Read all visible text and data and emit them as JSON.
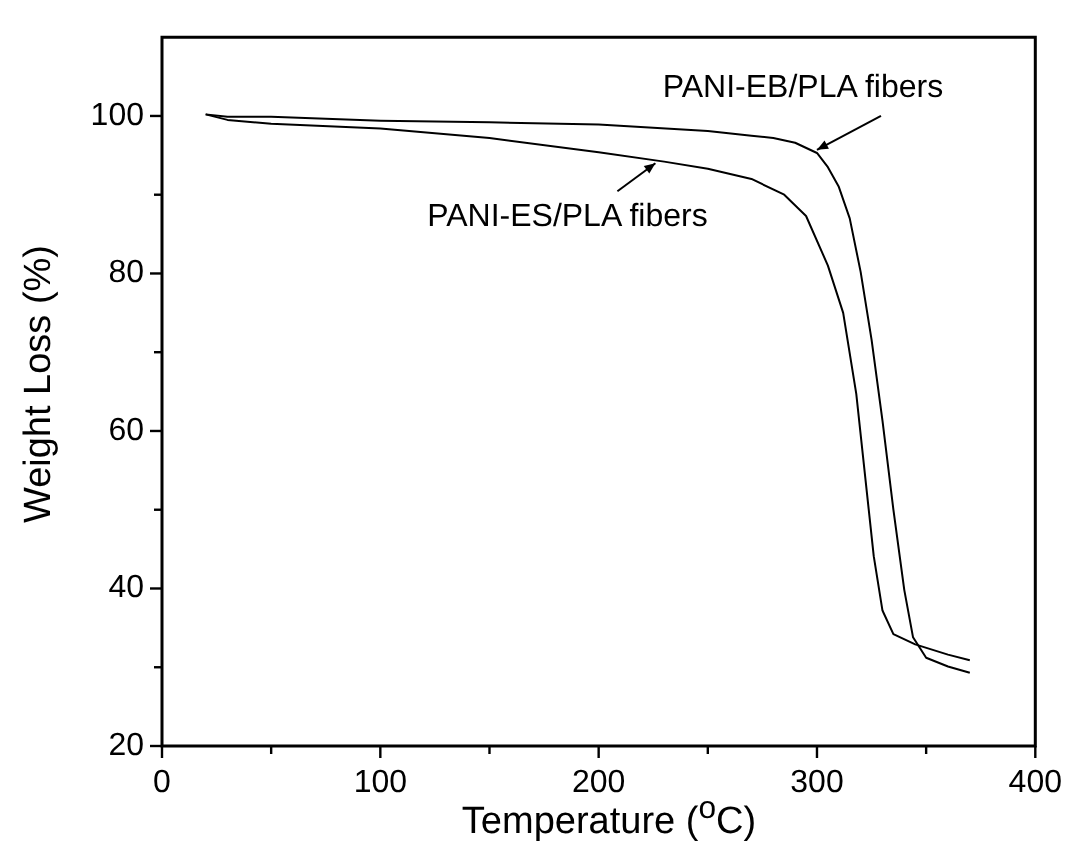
{
  "chart_data": {
    "type": "line",
    "xlabel": "Temperature ($^{o}$C)",
    "ylabel": "Weight Loss (%)",
    "xlim": [
      0,
      400
    ],
    "xticks": [
      0,
      {
        "value": 50,
        "label": null
      },
      100,
      {
        "value": 150,
        "label": null
      },
      200,
      {
        "value": 250,
        "label": null
      },
      300,
      {
        "value": 350,
        "label": null
      },
      400
    ],
    "ylim": [
      20,
      110
    ],
    "yticks": [
      20,
      {
        "value": 30,
        "label": null
      },
      40,
      {
        "value": 50,
        "label": null
      },
      60,
      {
        "value": 70,
        "label": null
      },
      80,
      {
        "value": 90,
        "label": null
      },
      100
    ],
    "grid": false,
    "legend": false,
    "marker": "none",
    "line_style": "solid",
    "series": [
      {
        "color": "#000000",
        "x": [
          20,
          30,
          50,
          100,
          150,
          200,
          250,
          270,
          280,
          290,
          300,
          305,
          310,
          315,
          320,
          325,
          330,
          335,
          340,
          344,
          350,
          360,
          370
        ],
        "values": [
          100.2,
          99.9,
          99.9,
          99.4,
          99.2,
          98.9,
          98.1,
          97.5,
          97.2,
          96.6,
          95.3,
          93.5,
          91,
          87,
          80.2,
          71.6,
          61.3,
          50,
          39.8,
          33.8,
          31.2,
          30.1,
          29.3
        ]
      },
      {
        "color": "#000000",
        "x": [
          20,
          30,
          50,
          100,
          150,
          200,
          230,
          250,
          270,
          285,
          295,
          305,
          312,
          318,
          322,
          326,
          330,
          335,
          345,
          360,
          370
        ],
        "values": [
          100.2,
          99.5,
          99,
          98.4,
          97.2,
          95.4,
          94.2,
          93.3,
          92,
          90,
          87.3,
          81,
          75,
          64.7,
          54.4,
          44.1,
          37.2,
          34.2,
          32.9,
          31.6,
          30.9
        ]
      }
    ],
    "annotations": [
      {
        "text": "PANI-EB/PLA fibers",
        "x": 300,
        "y": 95.7
      },
      {
        "text": "PANI-ES/PLA fibers",
        "x": 226,
        "y": 94
      }
    ]
  }
}
